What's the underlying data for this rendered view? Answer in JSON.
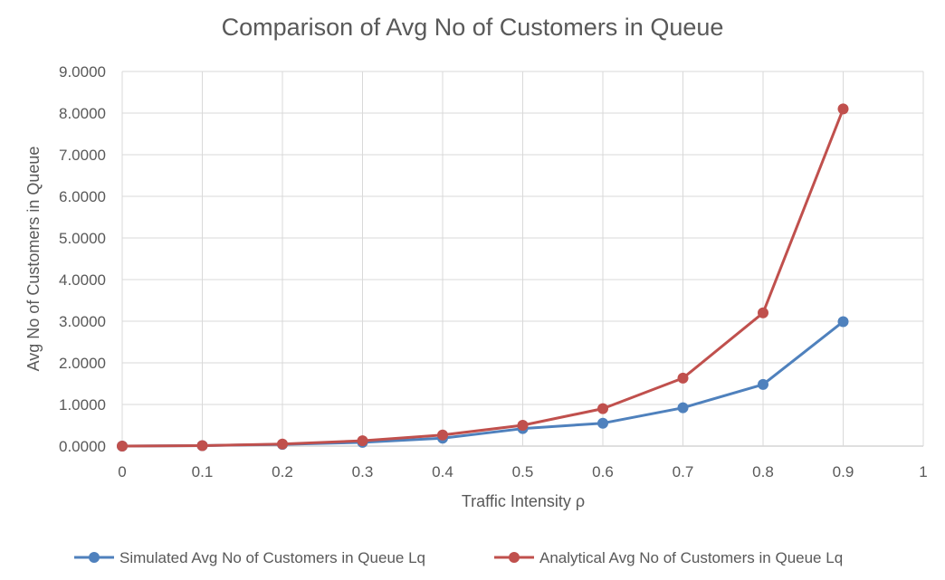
{
  "chart_data": {
    "type": "line",
    "title": "Comparison of Avg No of Customers in Queue",
    "xlabel": "Traffic Intensity  ρ",
    "ylabel": "Avg No of Customers in Queue",
    "xlim": [
      0,
      1
    ],
    "ylim": [
      0,
      9
    ],
    "x_ticks": [
      "0",
      "0.1",
      "0.2",
      "0.3",
      "0.4",
      "0.5",
      "0.6",
      "0.7",
      "0.8",
      "0.9",
      "1"
    ],
    "y_ticks": [
      "0.0000",
      "1.0000",
      "2.0000",
      "3.0000",
      "4.0000",
      "5.0000",
      "6.0000",
      "7.0000",
      "8.0000",
      "9.0000"
    ],
    "grid": true,
    "legend_position": "bottom",
    "x": [
      0,
      0.1,
      0.2,
      0.3,
      0.4,
      0.5,
      0.6,
      0.7,
      0.8,
      0.9
    ],
    "series": [
      {
        "name": "Simulated Avg No of Customers in Queue Lq",
        "color": "#4f81bd",
        "values": [
          0.0,
          0.011,
          0.04,
          0.09,
          0.19,
          0.42,
          0.55,
          0.92,
          1.48,
          2.99
        ]
      },
      {
        "name": "Analytical Avg No of Customers in Queue Lq",
        "color": "#c0504d",
        "values": [
          0.0,
          0.0111,
          0.05,
          0.1286,
          0.2667,
          0.5,
          0.9,
          1.6333,
          3.2,
          8.1
        ]
      }
    ]
  }
}
